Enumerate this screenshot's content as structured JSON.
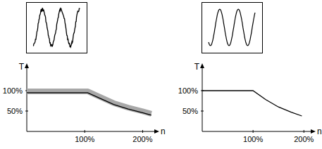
{
  "chart_data": [
    {
      "type": "line",
      "x_label": "n",
      "y_label": "T",
      "x": [
        0,
        105,
        125,
        150,
        175,
        200,
        215
      ],
      "series": [
        {
          "color": "#000000",
          "line_style": "band",
          "values": [
            95,
            95,
            82,
            66,
            55,
            46,
            40
          ]
        }
      ],
      "xlim": [
        0,
        225
      ],
      "ylim": [
        0,
        162
      ],
      "xticks": [
        {
          "value": 100,
          "label": "100%"
        },
        {
          "value": 200,
          "label": "200%"
        }
      ],
      "yticks": [
        {
          "value": 50,
          "label": "50%"
        },
        {
          "value": 100,
          "label": "100%"
        }
      ]
    },
    {
      "type": "line",
      "x_label": "n",
      "y_label": "T",
      "x": [
        0,
        100,
        125,
        150,
        175,
        196
      ],
      "series": [
        {
          "color": "#000000",
          "line_style": "solid",
          "values": [
            100,
            100,
            78,
            60,
            47,
            38
          ]
        }
      ],
      "xlim": [
        0,
        219
      ],
      "ylim": [
        0,
        162
      ],
      "xticks": [
        {
          "value": 100,
          "label": "100%"
        },
        {
          "value": 200,
          "label": "200%"
        }
      ],
      "yticks": [
        {
          "value": 50,
          "label": "50%"
        },
        {
          "value": 100,
          "label": "100%"
        }
      ]
    }
  ]
}
